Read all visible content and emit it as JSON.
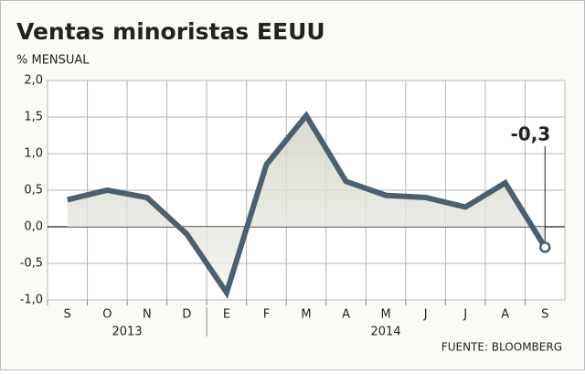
{
  "chart_data": {
    "type": "line",
    "title": "Ventas minoristas EEUU",
    "subtitle": "% MENSUAL",
    "categories": [
      "S",
      "O",
      "N",
      "D",
      "E",
      "F",
      "M",
      "A",
      "M",
      "J",
      "J",
      "A",
      "S"
    ],
    "series": [
      {
        "name": "Ventas minoristas",
        "color": "#4b5f6e",
        "values": [
          0.37,
          0.5,
          0.4,
          -0.1,
          -0.9,
          0.85,
          1.52,
          0.62,
          0.43,
          0.4,
          0.27,
          0.6,
          -0.28
        ],
        "value_labels": [
          null,
          null,
          null,
          null,
          null,
          null,
          null,
          null,
          null,
          null,
          null,
          null,
          "-0,3"
        ]
      }
    ],
    "year_groups": [
      {
        "label": "2013",
        "first": 0,
        "last": 3
      },
      {
        "label": "2014",
        "first": 4,
        "last": 12
      }
    ],
    "ylim": [
      -1.0,
      2.0
    ],
    "yticks": [
      {
        "value": -1.0,
        "label": "-1,0"
      },
      {
        "value": -0.5,
        "label": "-0,5"
      },
      {
        "value": 0.0,
        "label": "0,0"
      },
      {
        "value": 0.5,
        "label": "0,5"
      },
      {
        "value": 1.0,
        "label": "1,0"
      },
      {
        "value": 1.5,
        "label": "1,5"
      },
      {
        "value": 2.0,
        "label": "2,0"
      }
    ],
    "grid": true,
    "source": "FUENTE: BLOOMBERG"
  }
}
